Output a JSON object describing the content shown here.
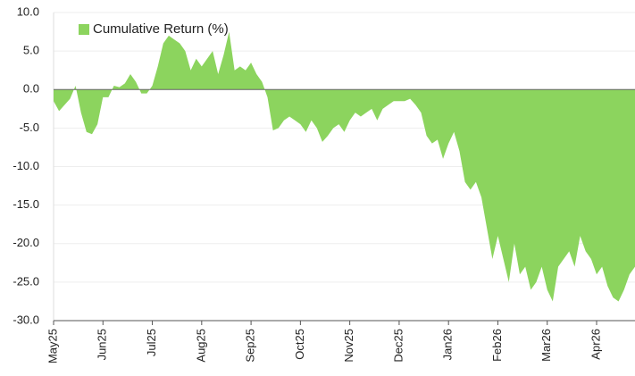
{
  "chart_data": {
    "type": "area",
    "categories": [
      "May25",
      null,
      null,
      null,
      null,
      null,
      null,
      null,
      null,
      "Jun25",
      null,
      null,
      null,
      null,
      null,
      null,
      null,
      null,
      "Jul25",
      null,
      null,
      null,
      null,
      null,
      null,
      null,
      null,
      "Aug25",
      null,
      null,
      null,
      null,
      null,
      null,
      null,
      null,
      "Sep25",
      null,
      null,
      null,
      null,
      null,
      null,
      null,
      null,
      "Oct25",
      null,
      null,
      null,
      null,
      null,
      null,
      null,
      null,
      "Nov25",
      null,
      null,
      null,
      null,
      null,
      null,
      null,
      null,
      "Dec25",
      null,
      null,
      null,
      null,
      null,
      null,
      null,
      null,
      "Jan26",
      null,
      null,
      null,
      null,
      null,
      null,
      null,
      null,
      "Feb26",
      null,
      null,
      null,
      null,
      null,
      null,
      null,
      null,
      "Mar26",
      null,
      null,
      null,
      null,
      null,
      null,
      null,
      null,
      "Apr26",
      null,
      null,
      null,
      null,
      null,
      null,
      null
    ],
    "series": [
      {
        "name": "Cumulative Return (%)",
        "color": "#8cd45e",
        "values": [
          -1.5,
          -2.8,
          -2,
          -1.2,
          0.5,
          -3,
          -5.5,
          -5.8,
          -4.5,
          -1,
          -1,
          0.5,
          0.3,
          0.8,
          2,
          1,
          -0.5,
          -0.5,
          0.5,
          3,
          6,
          7,
          6.5,
          6,
          5,
          2.5,
          4,
          3,
          4,
          5,
          2,
          4.5,
          7.5,
          2.5,
          3,
          2.5,
          3.5,
          2,
          1,
          -1,
          -5.3,
          -5,
          -4,
          -3.5,
          -4,
          -4.5,
          -5.5,
          -4,
          -5,
          -6.8,
          -6,
          -5,
          -4.5,
          -5.5,
          -4,
          -3,
          -3.5,
          -3,
          -2.5,
          -4,
          -2.5,
          -2,
          -1.5,
          -1.5,
          -1.5,
          -1.2,
          -2,
          -3,
          -6,
          -7,
          -6.5,
          -9,
          -7,
          -5.5,
          -8,
          -12,
          -13,
          -12,
          -14,
          -18,
          -22,
          -19,
          -22,
          -25,
          -20,
          -24,
          -23,
          -26,
          -25,
          -23,
          -26,
          -27.5,
          -23,
          -22,
          -21,
          -23,
          -19,
          -21,
          -22,
          -24,
          -23,
          -25.5,
          -27,
          -27.5,
          -26,
          -24,
          -23
        ]
      }
    ],
    "ylim": [
      -30,
      10
    ],
    "yticks": [
      {
        "value": -30,
        "label": "-30.0"
      },
      {
        "value": -25,
        "label": "-25.0"
      },
      {
        "value": -20,
        "label": "-20.0"
      },
      {
        "value": -15,
        "label": "-15.0"
      },
      {
        "value": -10,
        "label": "-10.0"
      },
      {
        "value": -5,
        "label": "-5.0"
      },
      {
        "value": 0,
        "label": "0.0"
      },
      {
        "value": 5,
        "label": "5.0"
      },
      {
        "value": 10,
        "label": "10.0"
      }
    ],
    "grid": true,
    "legend": "upper left"
  }
}
